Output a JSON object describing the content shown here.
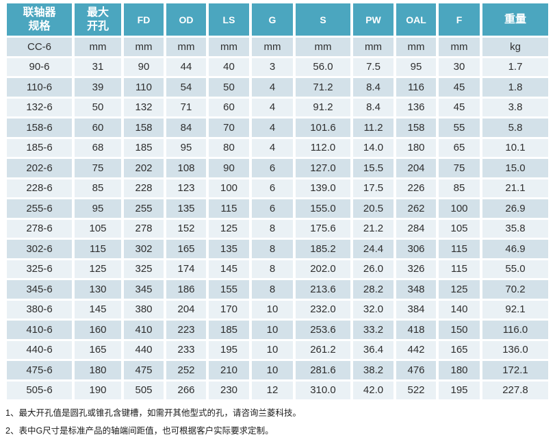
{
  "colors": {
    "header_bg": "#4BA6BF",
    "header_text": "#FFFFFF",
    "row_dark": "#D3E1E9",
    "row_light": "#EAF1F5",
    "body_text": "#2E2E2E"
  },
  "table": {
    "columns": [
      {
        "id": "spec",
        "label": "联轴器\n规格",
        "cn": true
      },
      {
        "id": "bore",
        "label": "最大\n开孔",
        "cn": true
      },
      {
        "id": "fd",
        "label": "FD"
      },
      {
        "id": "od",
        "label": "OD"
      },
      {
        "id": "ls",
        "label": "LS"
      },
      {
        "id": "g",
        "label": "G"
      },
      {
        "id": "s",
        "label": "S"
      },
      {
        "id": "pw",
        "label": "PW"
      },
      {
        "id": "oal",
        "label": "OAL"
      },
      {
        "id": "f",
        "label": "F"
      },
      {
        "id": "weight",
        "label": "重量",
        "cn": true
      }
    ],
    "units_row": [
      "CC-6",
      "mm",
      "mm",
      "mm",
      "mm",
      "mm",
      "mm",
      "mm",
      "mm",
      "mm",
      "kg"
    ],
    "rows": [
      [
        "90-6",
        "31",
        "90",
        "44",
        "40",
        "3",
        "56.0",
        "7.5",
        "95",
        "30",
        "1.7"
      ],
      [
        "110-6",
        "39",
        "110",
        "54",
        "50",
        "4",
        "71.2",
        "8.4",
        "116",
        "45",
        "1.8"
      ],
      [
        "132-6",
        "50",
        "132",
        "71",
        "60",
        "4",
        "91.2",
        "8.4",
        "136",
        "45",
        "3.8"
      ],
      [
        "158-6",
        "60",
        "158",
        "84",
        "70",
        "4",
        "101.6",
        "11.2",
        "158",
        "55",
        "5.8"
      ],
      [
        "185-6",
        "68",
        "185",
        "95",
        "80",
        "4",
        "112.0",
        "14.0",
        "180",
        "65",
        "10.1"
      ],
      [
        "202-6",
        "75",
        "202",
        "108",
        "90",
        "6",
        "127.0",
        "15.5",
        "204",
        "75",
        "15.0"
      ],
      [
        "228-6",
        "85",
        "228",
        "123",
        "100",
        "6",
        "139.0",
        "17.5",
        "226",
        "85",
        "21.1"
      ],
      [
        "255-6",
        "95",
        "255",
        "135",
        "115",
        "6",
        "155.0",
        "20.5",
        "262",
        "100",
        "26.9"
      ],
      [
        "278-6",
        "105",
        "278",
        "152",
        "125",
        "8",
        "175.6",
        "21.2",
        "284",
        "105",
        "35.8"
      ],
      [
        "302-6",
        "115",
        "302",
        "165",
        "135",
        "8",
        "185.2",
        "24.4",
        "306",
        "115",
        "46.9"
      ],
      [
        "325-6",
        "125",
        "325",
        "174",
        "145",
        "8",
        "202.0",
        "26.0",
        "326",
        "115",
        "55.0"
      ],
      [
        "345-6",
        "130",
        "345",
        "186",
        "155",
        "8",
        "213.6",
        "28.2",
        "348",
        "125",
        "70.2"
      ],
      [
        "380-6",
        "145",
        "380",
        "204",
        "170",
        "10",
        "232.0",
        "32.0",
        "384",
        "140",
        "92.1"
      ],
      [
        "410-6",
        "160",
        "410",
        "223",
        "185",
        "10",
        "253.6",
        "33.2",
        "418",
        "150",
        "116.0"
      ],
      [
        "440-6",
        "165",
        "440",
        "233",
        "195",
        "10",
        "261.2",
        "36.4",
        "442",
        "165",
        "136.0"
      ],
      [
        "475-6",
        "180",
        "475",
        "252",
        "210",
        "10",
        "281.6",
        "38.2",
        "476",
        "180",
        "172.1"
      ],
      [
        "505-6",
        "190",
        "505",
        "266",
        "230",
        "12",
        "310.0",
        "42.0",
        "522",
        "195",
        "227.8"
      ]
    ]
  },
  "notes": [
    "1、最大开孔值是圆孔或锥孔含键槽，如需开其他型式的孔，请咨询兰菱科技。",
    "2、表中G尺寸是标准产品的轴端间距值，也可根据客户实际要求定制。"
  ]
}
